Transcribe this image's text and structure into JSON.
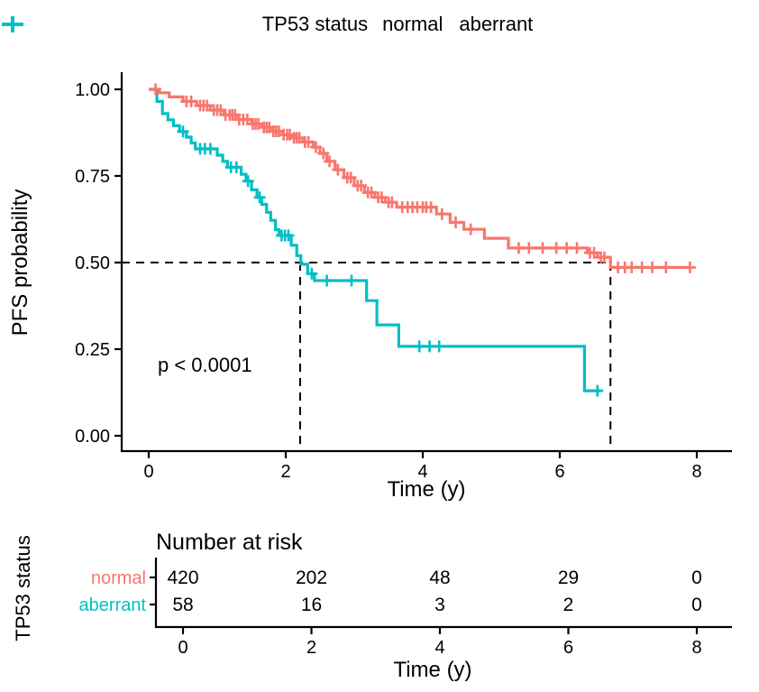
{
  "legend": {
    "title": "TP53 status",
    "entries": [
      {
        "label": "normal",
        "color": "#F8766D"
      },
      {
        "label": "aberrant",
        "color": "#00BFC4"
      }
    ]
  },
  "plot": {
    "ylabel": "PFS probability",
    "xlabel": "Time (y)",
    "p_value": "p < 0.0001",
    "x_ticks": [
      "0",
      "2",
      "4",
      "6",
      "8"
    ],
    "y_ticks": [
      "1.00",
      "0.75",
      "0.50",
      "0.25",
      "0.00"
    ]
  },
  "chart_data": {
    "type": "line",
    "subtype": "kaplan-meier-step",
    "title": "",
    "xlabel": "Time (y)",
    "ylabel": "PFS probability",
    "xlim": [
      0,
      8
    ],
    "ylim": [
      0,
      1
    ],
    "x_ticks": [
      0,
      2,
      4,
      6,
      8
    ],
    "y_ticks": [
      0,
      0.25,
      0.5,
      0.75,
      1.0
    ],
    "legend_title": "TP53 status",
    "legend_position": "top",
    "annotation": "p < 0.0001",
    "median_lines": {
      "probability": 0.5,
      "medians": {
        "normal": 6.74,
        "aberrant": 2.21
      }
    },
    "series": [
      {
        "name": "normal",
        "color": "#F8766D",
        "end_time": 7.9,
        "steps": [
          [
            0.15,
            0.99
          ],
          [
            0.3,
            0.978
          ],
          [
            0.5,
            0.965
          ],
          [
            0.7,
            0.953
          ],
          [
            0.9,
            0.94
          ],
          [
            1.1,
            0.926
          ],
          [
            1.3,
            0.913
          ],
          [
            1.5,
            0.9
          ],
          [
            1.65,
            0.89
          ],
          [
            1.8,
            0.879
          ],
          [
            1.95,
            0.869
          ],
          [
            2.1,
            0.86
          ],
          [
            2.25,
            0.848
          ],
          [
            2.4,
            0.833
          ],
          [
            2.5,
            0.815
          ],
          [
            2.6,
            0.792
          ],
          [
            2.72,
            0.768
          ],
          [
            2.85,
            0.745
          ],
          [
            3.0,
            0.722
          ],
          [
            3.15,
            0.702
          ],
          [
            3.3,
            0.688
          ],
          [
            3.45,
            0.674
          ],
          [
            3.62,
            0.66
          ],
          [
            4.2,
            0.64
          ],
          [
            4.4,
            0.616
          ],
          [
            4.6,
            0.596
          ],
          [
            4.9,
            0.57
          ],
          [
            5.25,
            0.542
          ],
          [
            6.4,
            0.528
          ],
          [
            6.55,
            0.515
          ],
          [
            6.74,
            0.486
          ]
        ],
        "censor_marks": [
          [
            0.1,
            1.0
          ],
          [
            0.55,
            0.965
          ],
          [
            0.62,
            0.965
          ],
          [
            0.75,
            0.953
          ],
          [
            0.8,
            0.953
          ],
          [
            0.85,
            0.953
          ],
          [
            0.95,
            0.94
          ],
          [
            1.0,
            0.94
          ],
          [
            1.05,
            0.94
          ],
          [
            1.12,
            0.926
          ],
          [
            1.18,
            0.926
          ],
          [
            1.22,
            0.926
          ],
          [
            1.26,
            0.926
          ],
          [
            1.32,
            0.913
          ],
          [
            1.38,
            0.913
          ],
          [
            1.44,
            0.913
          ],
          [
            1.52,
            0.9
          ],
          [
            1.56,
            0.9
          ],
          [
            1.6,
            0.9
          ],
          [
            1.68,
            0.89
          ],
          [
            1.72,
            0.89
          ],
          [
            1.76,
            0.89
          ],
          [
            1.82,
            0.879
          ],
          [
            1.86,
            0.879
          ],
          [
            1.9,
            0.879
          ],
          [
            1.97,
            0.869
          ],
          [
            2.02,
            0.869
          ],
          [
            2.06,
            0.869
          ],
          [
            2.12,
            0.86
          ],
          [
            2.16,
            0.86
          ],
          [
            2.2,
            0.86
          ],
          [
            2.28,
            0.848
          ],
          [
            2.33,
            0.848
          ],
          [
            2.44,
            0.833
          ],
          [
            2.55,
            0.815
          ],
          [
            2.64,
            0.792
          ],
          [
            2.76,
            0.768
          ],
          [
            2.9,
            0.745
          ],
          [
            2.95,
            0.745
          ],
          [
            3.05,
            0.722
          ],
          [
            3.1,
            0.722
          ],
          [
            3.2,
            0.702
          ],
          [
            3.25,
            0.702
          ],
          [
            3.35,
            0.688
          ],
          [
            3.4,
            0.688
          ],
          [
            3.5,
            0.674
          ],
          [
            3.55,
            0.674
          ],
          [
            3.7,
            0.66
          ],
          [
            3.78,
            0.66
          ],
          [
            3.85,
            0.66
          ],
          [
            3.92,
            0.66
          ],
          [
            4.0,
            0.66
          ],
          [
            4.05,
            0.66
          ],
          [
            4.12,
            0.66
          ],
          [
            4.28,
            0.64
          ],
          [
            4.48,
            0.616
          ],
          [
            4.7,
            0.596
          ],
          [
            5.4,
            0.542
          ],
          [
            5.55,
            0.542
          ],
          [
            5.75,
            0.542
          ],
          [
            5.95,
            0.542
          ],
          [
            6.1,
            0.542
          ],
          [
            6.25,
            0.542
          ],
          [
            6.44,
            0.528
          ],
          [
            6.5,
            0.528
          ],
          [
            6.6,
            0.515
          ],
          [
            6.65,
            0.515
          ],
          [
            6.85,
            0.486
          ],
          [
            6.95,
            0.486
          ],
          [
            7.05,
            0.486
          ],
          [
            7.2,
            0.486
          ],
          [
            7.35,
            0.486
          ],
          [
            7.55,
            0.486
          ],
          [
            7.9,
            0.486
          ]
        ]
      },
      {
        "name": "aberrant",
        "color": "#00BFC4",
        "end_time": 6.6,
        "steps": [
          [
            0.12,
            0.965
          ],
          [
            0.2,
            0.93
          ],
          [
            0.28,
            0.912
          ],
          [
            0.36,
            0.895
          ],
          [
            0.45,
            0.878
          ],
          [
            0.55,
            0.862
          ],
          [
            0.62,
            0.845
          ],
          [
            0.68,
            0.828
          ],
          [
            1.0,
            0.81
          ],
          [
            1.08,
            0.792
          ],
          [
            1.15,
            0.775
          ],
          [
            1.35,
            0.755
          ],
          [
            1.42,
            0.735
          ],
          [
            1.5,
            0.71
          ],
          [
            1.58,
            0.688
          ],
          [
            1.65,
            0.668
          ],
          [
            1.72,
            0.645
          ],
          [
            1.78,
            0.622
          ],
          [
            1.85,
            0.595
          ],
          [
            1.9,
            0.578
          ],
          [
            2.08,
            0.55
          ],
          [
            2.16,
            0.52
          ],
          [
            2.22,
            0.495
          ],
          [
            2.32,
            0.468
          ],
          [
            2.42,
            0.448
          ],
          [
            3.18,
            0.39
          ],
          [
            3.33,
            0.32
          ],
          [
            3.65,
            0.258
          ],
          [
            6.36,
            0.13
          ]
        ],
        "censor_marks": [
          [
            0.5,
            0.878
          ],
          [
            0.75,
            0.828
          ],
          [
            0.82,
            0.828
          ],
          [
            0.9,
            0.828
          ],
          [
            1.2,
            0.775
          ],
          [
            1.28,
            0.775
          ],
          [
            1.45,
            0.735
          ],
          [
            1.62,
            0.688
          ],
          [
            1.94,
            0.578
          ],
          [
            1.99,
            0.578
          ],
          [
            2.04,
            0.578
          ],
          [
            2.38,
            0.468
          ],
          [
            2.6,
            0.448
          ],
          [
            2.96,
            0.448
          ],
          [
            3.95,
            0.258
          ],
          [
            4.1,
            0.258
          ],
          [
            4.24,
            0.258
          ],
          [
            6.55,
            0.13
          ]
        ]
      }
    ]
  },
  "risk_table": {
    "title": "Number at risk",
    "axis_label": "TP53 status",
    "xlabel": "Time (y)",
    "times": [
      0,
      2,
      4,
      6,
      8
    ],
    "time_labels": [
      "0",
      "2",
      "4",
      "6",
      "8"
    ],
    "rows": [
      {
        "label": "normal",
        "color": "#F8766D",
        "counts": [
          420,
          202,
          48,
          29,
          0
        ]
      },
      {
        "label": "aberrant",
        "color": "#00BFC4",
        "counts": [
          58,
          16,
          3,
          2,
          0
        ]
      }
    ]
  }
}
